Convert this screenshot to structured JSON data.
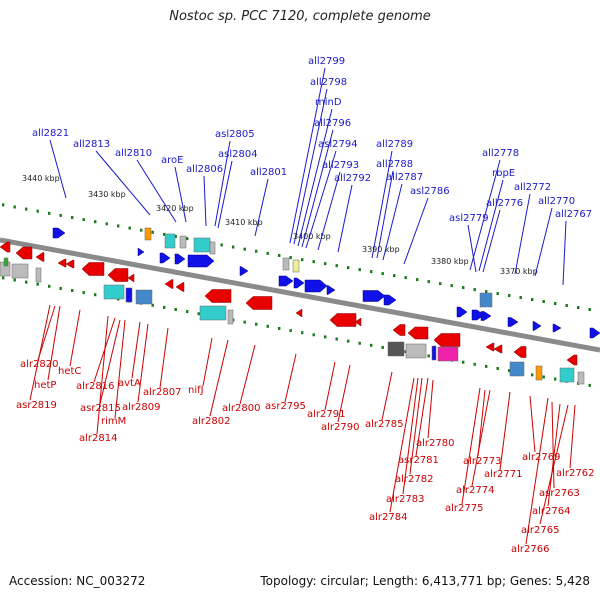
{
  "title": "Nostoc sp. PCC 7120, complete genome",
  "footer": {
    "accession": "Accession: NC_003272",
    "topology": "Topology: circular; Length: 6,413,771 bp; Genes: 5,428"
  },
  "colors": {
    "forward_gene": "#1010e8",
    "reverse_gene": "#e80000",
    "top_label": "#1a1acc",
    "bottom_label": "#cc0000",
    "scale_tick": "#1a7a1a",
    "genome_line": "#8a8a8a"
  },
  "scale_labels": [
    "3440 kbp",
    "3430 kbp",
    "3420 kbp",
    "3410 kbp",
    "3400 kbp",
    "3390 kbp",
    "3380 kbp",
    "3370 kbp"
  ],
  "top_genes": [
    "all2821",
    "all2813",
    "all2810",
    "aroE",
    "all2806",
    "asl2805",
    "asl2804",
    "all2801",
    "all2799",
    "all2798",
    "minD",
    "all2796",
    "asl2794",
    "all2793",
    "all2792",
    "all2789",
    "all2788",
    "all2787",
    "asl2786",
    "all2778",
    "rbpE",
    "all2776",
    "asl2779",
    "all2772",
    "all2770",
    "all2767"
  ],
  "bottom_genes": [
    "alr2820",
    "hetP",
    "asr2819",
    "hetC",
    "alr2816",
    "asr2815",
    "rimM",
    "alr2814",
    "avtA",
    "alr2809",
    "alr2807",
    "nifJ",
    "alr2802",
    "alr2800",
    "asr2795",
    "alr2791",
    "alr2790",
    "alr2785",
    "alr2780",
    "asr2781",
    "alr2782",
    "alr2783",
    "alr2784",
    "alr2773",
    "alr2774",
    "alr2775",
    "alr2771",
    "alr2769",
    "asr2763",
    "alr2762",
    "alr2764",
    "alr2765",
    "alr2766"
  ]
}
